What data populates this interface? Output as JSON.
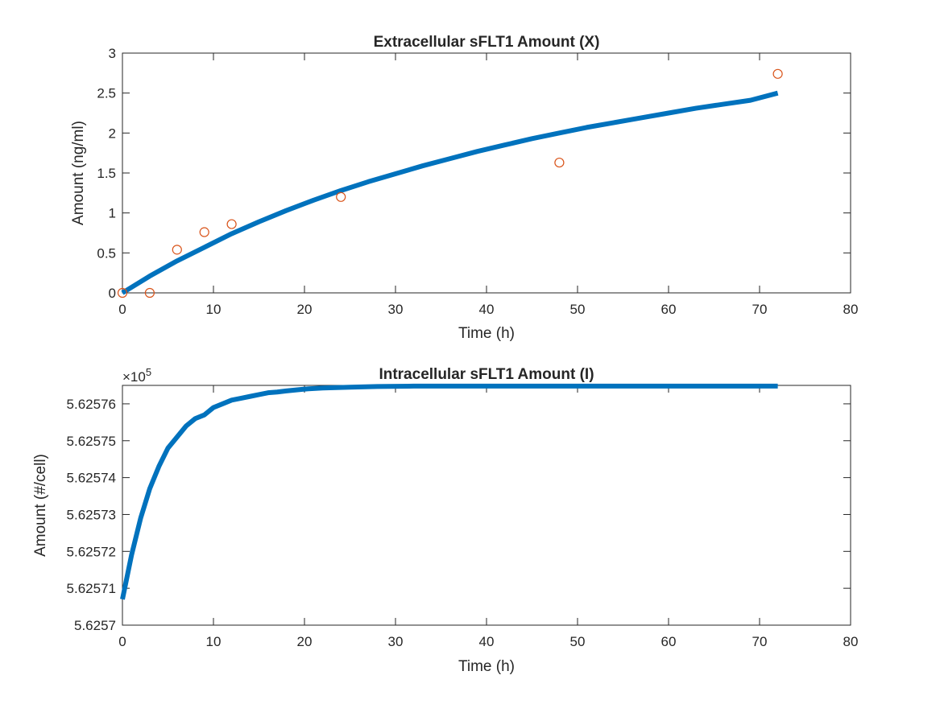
{
  "chart_data": [
    {
      "type": "line",
      "title": "Extracellular sFLT1 Amount (X)",
      "xlabel": "Time (h)",
      "ylabel": "Amount (ng/ml)",
      "xlim": [
        0,
        80
      ],
      "ylim": [
        0,
        3
      ],
      "xticks": [
        "0",
        "10",
        "20",
        "30",
        "40",
        "50",
        "60",
        "70",
        "80"
      ],
      "yticks": [
        "0",
        "0.5",
        "1",
        "1.5",
        "2",
        "2.5",
        "3"
      ],
      "grid": false,
      "series": [
        {
          "kind": "line",
          "color": "#0072BD",
          "x": [
            0,
            3,
            6,
            9,
            12,
            15,
            18,
            21,
            24,
            27,
            30,
            33,
            36,
            39,
            42,
            45,
            48,
            51,
            54,
            57,
            60,
            63,
            66,
            69,
            72
          ],
          "y": [
            0,
            0.21,
            0.4,
            0.57,
            0.74,
            0.89,
            1.03,
            1.16,
            1.28,
            1.39,
            1.49,
            1.59,
            1.68,
            1.77,
            1.85,
            1.93,
            2.0,
            2.07,
            2.13,
            2.19,
            2.25,
            2.31,
            2.36,
            2.41,
            2.5
          ]
        },
        {
          "kind": "scatter",
          "marker": "circle",
          "color": "#D95319",
          "x": [
            0,
            3,
            6,
            9,
            12,
            24,
            48,
            72
          ],
          "y": [
            0,
            0,
            0.54,
            0.76,
            0.86,
            1.2,
            1.63,
            2.74
          ]
        }
      ]
    },
    {
      "type": "line",
      "title": "Intracellular sFLT1 Amount (I)",
      "xlabel": "Time (h)",
      "ylabel": "Amount (#/cell)",
      "exponent_label": "×10",
      "exponent": "5",
      "xlim": [
        0,
        80
      ],
      "ylim": [
        5.6257,
        5.625765
      ],
      "xticks": [
        "0",
        "10",
        "20",
        "30",
        "40",
        "50",
        "60",
        "70",
        "80"
      ],
      "yticks": [
        "5.6257",
        "5.62571",
        "5.62572",
        "5.62573",
        "5.62574",
        "5.62575",
        "5.62576"
      ],
      "grid": false,
      "series": [
        {
          "kind": "line",
          "color": "#0072BD",
          "x": [
            0,
            1,
            2,
            3,
            4,
            5,
            6,
            7,
            8,
            9,
            10,
            11,
            12,
            13,
            14,
            15,
            16,
            17,
            18,
            20,
            22,
            25,
            28,
            32,
            36,
            40,
            48,
            56,
            64,
            72
          ],
          "y": [
            5.625707,
            5.625719,
            5.625729,
            5.625737,
            5.625743,
            5.625748,
            5.625751,
            5.625754,
            5.625756,
            5.625757,
            5.625759,
            5.62576,
            5.625761,
            5.6257615,
            5.625762,
            5.6257625,
            5.625763,
            5.6257632,
            5.6257635,
            5.625764,
            5.6257643,
            5.6257645,
            5.6257647,
            5.6257648,
            5.6257648,
            5.6257648,
            5.6257648,
            5.6257648,
            5.6257648,
            5.6257648
          ]
        }
      ]
    }
  ]
}
